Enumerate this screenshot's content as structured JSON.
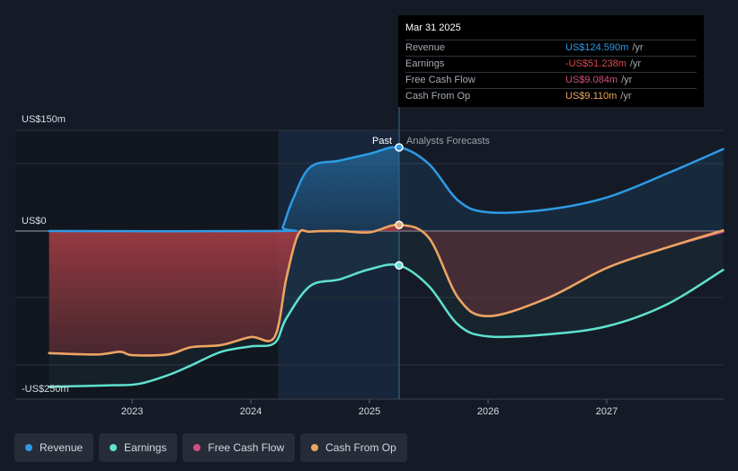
{
  "chart_data": {
    "type": "line",
    "y_labels": {
      "top": "US$150m",
      "zero": "US$0",
      "bottom": "-US$250m"
    },
    "ylim": [
      -250,
      150
    ],
    "x_ticks": [
      "2023",
      "2024",
      "2025",
      "2026",
      "2027"
    ],
    "past_label": "Past",
    "forecast_label": "Analysts Forecasts",
    "x_start": 2022.3,
    "x_end": 2027.98,
    "past_start": 2024.23,
    "divider_x": 2025.25,
    "colors": {
      "revenue": "#2d9be6",
      "earnings": "#5fe2d0",
      "free_cash_flow": "#d34f80",
      "cash_from_op": "#eaa660"
    },
    "series": [
      {
        "name": "Revenue",
        "key": "revenue",
        "x": [
          2022.3,
          2024.23,
          2024.27,
          2024.35,
          2024.5,
          2024.75,
          2025.0,
          2025.25,
          2025.5,
          2025.75,
          2026.0,
          2026.5,
          2027.0,
          2027.5,
          2027.98
        ],
        "y": [
          0,
          0,
          6,
          45,
          95,
          105,
          115,
          124.6,
          100,
          45,
          28,
          32,
          50,
          85,
          122
        ]
      },
      {
        "name": "Earnings",
        "key": "earnings",
        "x": [
          2022.3,
          2022.8,
          2023.05,
          2023.3,
          2023.5,
          2023.75,
          2024.0,
          2024.2,
          2024.3,
          2024.5,
          2024.75,
          2025.0,
          2025.25,
          2025.5,
          2025.75,
          2026.0,
          2026.5,
          2027.0,
          2027.5,
          2027.98
        ],
        "y": [
          -232,
          -230,
          -228,
          -215,
          -200,
          -180,
          -172,
          -167,
          -130,
          -82,
          -72,
          -57,
          -51.2,
          -82,
          -140,
          -157,
          -154,
          -142,
          -110,
          -58
        ]
      },
      {
        "name": "Free Cash Flow",
        "key": "free_cash_flow",
        "x": [
          2022.3,
          2022.7,
          2022.9,
          2023.0,
          2023.3,
          2023.5,
          2023.75,
          2024.0,
          2024.2,
          2024.3,
          2024.4,
          2024.5,
          2024.75,
          2025.0,
          2025.25,
          2025.5,
          2025.75,
          2026.0,
          2026.5,
          2027.0,
          2027.5,
          2027.98
        ],
        "y": [
          -182,
          -184,
          -180,
          -185,
          -184,
          -173,
          -170,
          -158,
          -158,
          -70,
          -5,
          -1,
          0,
          -2,
          9.1,
          -10,
          -100,
          -127,
          -100,
          -55,
          -25,
          -1
        ]
      },
      {
        "name": "Cash From Op",
        "key": "cash_from_op",
        "x": [
          2022.3,
          2022.7,
          2022.9,
          2023.0,
          2023.3,
          2023.5,
          2023.75,
          2024.0,
          2024.2,
          2024.3,
          2024.4,
          2024.5,
          2024.75,
          2025.0,
          2025.25,
          2025.5,
          2025.75,
          2026.0,
          2026.5,
          2027.0,
          2027.5,
          2027.98
        ],
        "y": [
          -182,
          -184,
          -180,
          -185,
          -184,
          -173,
          -170,
          -158,
          -158,
          -70,
          -5,
          -1,
          0,
          -2,
          9.1,
          -10,
          -100,
          -127,
          -100,
          -55,
          -25,
          1
        ]
      }
    ],
    "markers": [
      {
        "key": "revenue",
        "x": 2025.25,
        "y": 124.6
      },
      {
        "key": "cash_from_op",
        "x": 2025.25,
        "y": 9.1
      },
      {
        "key": "earnings",
        "x": 2025.25,
        "y": -51.2
      }
    ]
  },
  "tooltip": {
    "date": "Mar 31 2025",
    "rows": [
      {
        "label": "Revenue",
        "value": "US$124.590m",
        "unit": "/yr",
        "color": "#2d9be6"
      },
      {
        "label": "Earnings",
        "value": "-US$51.238m",
        "unit": "/yr",
        "color": "#e0454f"
      },
      {
        "label": "Free Cash Flow",
        "value": "US$9.084m",
        "unit": "/yr",
        "color": "#d34f80"
      },
      {
        "label": "Cash From Op",
        "value": "US$9.110m",
        "unit": "/yr",
        "color": "#eaa660"
      }
    ]
  },
  "legend": [
    {
      "label": "Revenue",
      "color": "#2d9be6"
    },
    {
      "label": "Earnings",
      "color": "#5fe2d0"
    },
    {
      "label": "Free Cash Flow",
      "color": "#d34f80"
    },
    {
      "label": "Cash From Op",
      "color": "#eaa660"
    }
  ]
}
